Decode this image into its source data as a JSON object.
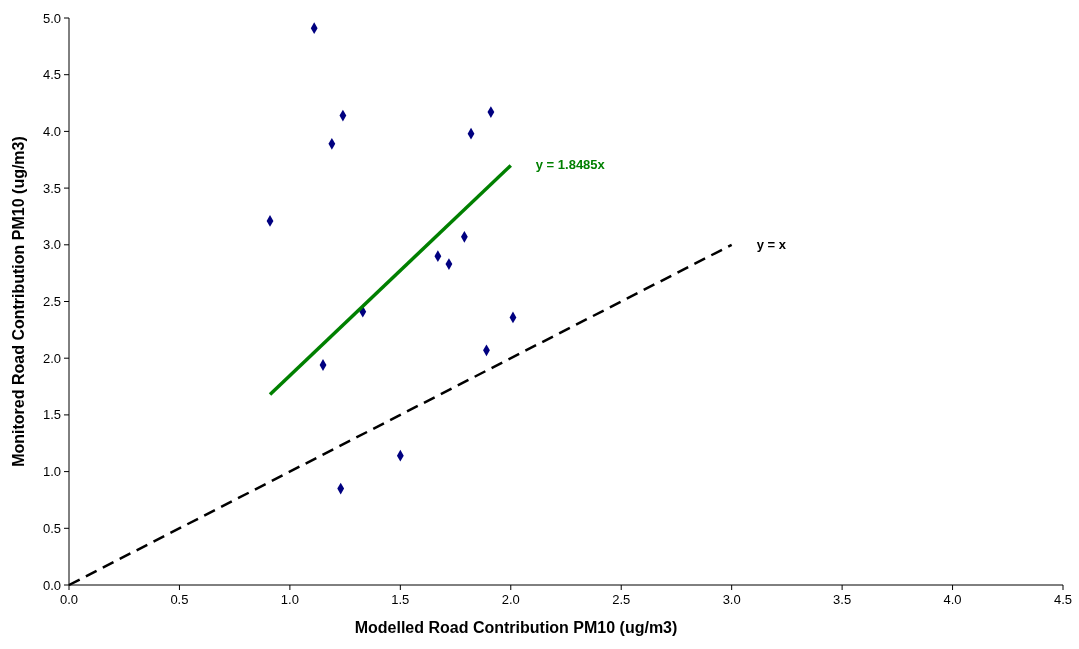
{
  "chart_data": {
    "type": "scatter",
    "xlabel": "Modelled Road Contribution PM10 (ug/m3)",
    "ylabel": "Monitored Road Contribution PM10 (ug/m3)",
    "xlim": [
      0,
      4.5
    ],
    "ylim": [
      0,
      5
    ],
    "xticks": [
      {
        "value": 0,
        "label": "0.0"
      },
      {
        "value": 0.5,
        "label": "0.5"
      },
      {
        "value": 1,
        "label": "1.0"
      },
      {
        "value": 1.5,
        "label": "1.5"
      },
      {
        "value": 2,
        "label": "2.0"
      },
      {
        "value": 2.5,
        "label": "2.5"
      },
      {
        "value": 3,
        "label": "3.0"
      },
      {
        "value": 3.5,
        "label": "3.5"
      },
      {
        "value": 4,
        "label": "4.0"
      },
      {
        "value": 4.5,
        "label": "4.5"
      }
    ],
    "yticks": [
      {
        "value": 0,
        "label": "0.0"
      },
      {
        "value": 0.5,
        "label": "0.5"
      },
      {
        "value": 1,
        "label": "1.0"
      },
      {
        "value": 1.5,
        "label": "1.5"
      },
      {
        "value": 2,
        "label": "2.0"
      },
      {
        "value": 2.5,
        "label": "2.5"
      },
      {
        "value": 3,
        "label": "3.0"
      },
      {
        "value": 3.5,
        "label": "3.5"
      },
      {
        "value": 4,
        "label": "4.0"
      },
      {
        "value": 4.5,
        "label": "4.5"
      },
      {
        "value": 5,
        "label": "5.0"
      }
    ],
    "grid": false,
    "series": [
      {
        "color": "#000080",
        "marker": "diamond",
        "x": [
          0.91,
          1.11,
          1.24,
          1.19,
          1.33,
          1.15,
          1.23,
          1.5,
          1.67,
          1.72,
          1.79,
          1.82,
          1.91,
          1.89,
          2.01
        ],
        "values": [
          3.21,
          4.91,
          4.14,
          3.89,
          2.41,
          1.94,
          0.85,
          1.14,
          2.9,
          2.83,
          3.07,
          3.98,
          4.17,
          2.07,
          2.36
        ]
      },
      {
        "type": "line",
        "color": "#008000",
        "line_style": "solid",
        "marker": "none",
        "x": [
          0.91,
          2.0
        ],
        "values": [
          1.68,
          3.7
        ]
      },
      {
        "type": "line",
        "color": "#000000",
        "line_style": "dashed",
        "marker": "none",
        "x": [
          0,
          3.0
        ],
        "values": [
          0,
          3.0
        ]
      }
    ],
    "annotations": [
      "y = 1.8485x",
      "y = x"
    ]
  }
}
